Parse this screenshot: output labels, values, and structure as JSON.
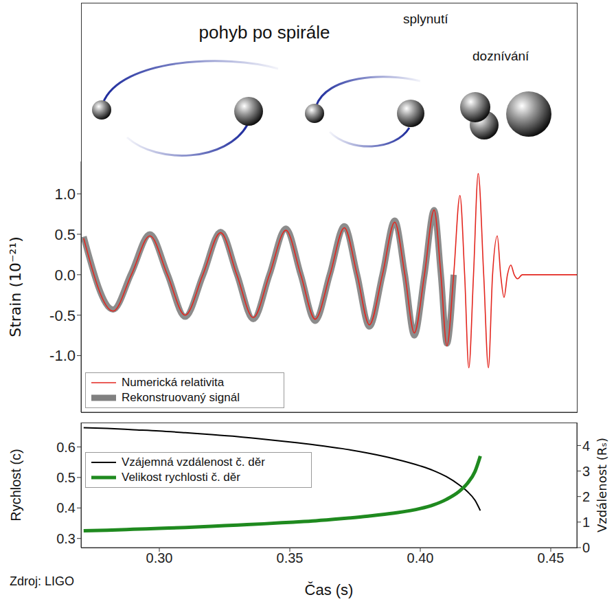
{
  "illustration": {
    "phases": [
      "pohyb po spirále",
      "splynutí",
      "doznívání"
    ]
  },
  "source": "Zdroj: LIGO",
  "chart_data": [
    {
      "type": "line",
      "y_label": "Strain (10⁻²¹)",
      "x": [
        0.271,
        0.2823,
        0.2893,
        0.2964,
        0.3031,
        0.3099,
        0.3167,
        0.3235,
        0.3297,
        0.336,
        0.3422,
        0.3485,
        0.3542,
        0.3597,
        0.3654,
        0.3709,
        0.3758,
        0.3805,
        0.3855,
        0.3902,
        0.3941,
        0.3977,
        0.4016,
        0.4053,
        0.4079,
        0.4102,
        0.4128,
        0.4152,
        0.417,
        0.4186,
        0.4204,
        0.4222,
        0.4243,
        0.4261,
        0.4277,
        0.4295,
        0.4308,
        0.4321,
        0.4334,
        0.4347,
        0.436,
        0.4373,
        0.4391,
        0.46
      ],
      "series": [
        {
          "name": "Numerická relativita",
          "color": "#e3261f",
          "values": [
            0.45,
            -0.45,
            0,
            0.48,
            0,
            -0.5,
            0,
            0.52,
            0,
            -0.53,
            0,
            0.55,
            0,
            -0.55,
            0,
            0.58,
            0,
            -0.62,
            0,
            0.65,
            0,
            -0.72,
            0,
            0.8,
            0,
            -0.88,
            0,
            0.98,
            0,
            -1.15,
            0,
            1.25,
            0,
            -1.15,
            0,
            0.48,
            0,
            -0.28,
            0,
            0.12,
            0,
            -0.05,
            0,
            0
          ]
        },
        {
          "name": "Rekonstruovaný signál",
          "color": "#808080",
          "values": [
            0.47,
            -0.43,
            0.02,
            0.5,
            0.01,
            -0.52,
            -0.01,
            0.53,
            0.01,
            -0.55,
            0,
            0.57,
            0,
            -0.57,
            0.01,
            0.6,
            0,
            -0.64,
            0,
            0.67,
            0,
            -0.75,
            0,
            0.8,
            0,
            -0.85,
            0,
            null,
            null,
            null,
            null,
            null,
            null,
            null,
            null,
            null,
            null,
            null,
            null,
            null,
            null,
            null,
            null,
            null
          ]
        }
      ],
      "xlim": [
        0.27,
        0.46
      ],
      "xticks": [
        {
          "value": 0.3,
          "label": "0.30"
        },
        0.35,
        {
          "value": 0.4,
          "label": "0.40"
        },
        0.45
      ],
      "ylim": [
        -1.7,
        1.4
      ],
      "yticks": [
        {
          "value": 1,
          "label": "1.0"
        },
        0.5,
        {
          "value": 0,
          "label": "0.0"
        },
        -0.5,
        {
          "value": -1,
          "label": "-1.0"
        }
      ],
      "tick_labels": "y",
      "legend": "lower left",
      "grid": false
    },
    {
      "type": "line",
      "x_label": "Čas (s)",
      "y_label": "Rychlost (c)",
      "y2_label": "Vzdálenost (Rₛ)",
      "x": [
        0.271,
        0.28,
        0.29,
        0.3,
        0.31,
        0.32,
        0.33,
        0.34,
        0.35,
        0.36,
        0.37,
        0.38,
        0.39,
        0.4,
        0.405,
        0.41,
        0.415,
        0.418,
        0.421,
        0.423
      ],
      "series": [
        {
          "name": "Vzájemná vzdálenost č. děr",
          "color": "#000000",
          "axis": "y2",
          "values": [
            4.7,
            4.67,
            4.62,
            4.57,
            4.5,
            4.43,
            4.35,
            4.25,
            4.14,
            4.02,
            3.88,
            3.7,
            3.48,
            3.2,
            3.02,
            2.78,
            2.45,
            2.2,
            1.85,
            1.45
          ]
        },
        {
          "name": "Velikost rychlosti č. děr",
          "color": "#1f8a1f",
          "values": [
            0.325,
            0.327,
            0.33,
            0.333,
            0.336,
            0.34,
            0.344,
            0.348,
            0.353,
            0.358,
            0.365,
            0.373,
            0.383,
            0.398,
            0.41,
            0.428,
            0.455,
            0.48,
            0.52,
            0.57
          ]
        }
      ],
      "xlim": [
        0.27,
        0.46
      ],
      "xticks": [
        {
          "value": 0.3,
          "label": "0.30"
        },
        0.35,
        {
          "value": 0.4,
          "label": "0.40"
        },
        0.45
      ],
      "ylim": [
        0.27,
        0.68
      ],
      "yticks": [
        0.3,
        0.4,
        0.5,
        0.6
      ],
      "y2lim": [
        0,
        4.9
      ],
      "y2ticks": [
        0,
        1,
        2,
        3,
        4
      ],
      "legend": "upper left",
      "grid": false
    }
  ]
}
